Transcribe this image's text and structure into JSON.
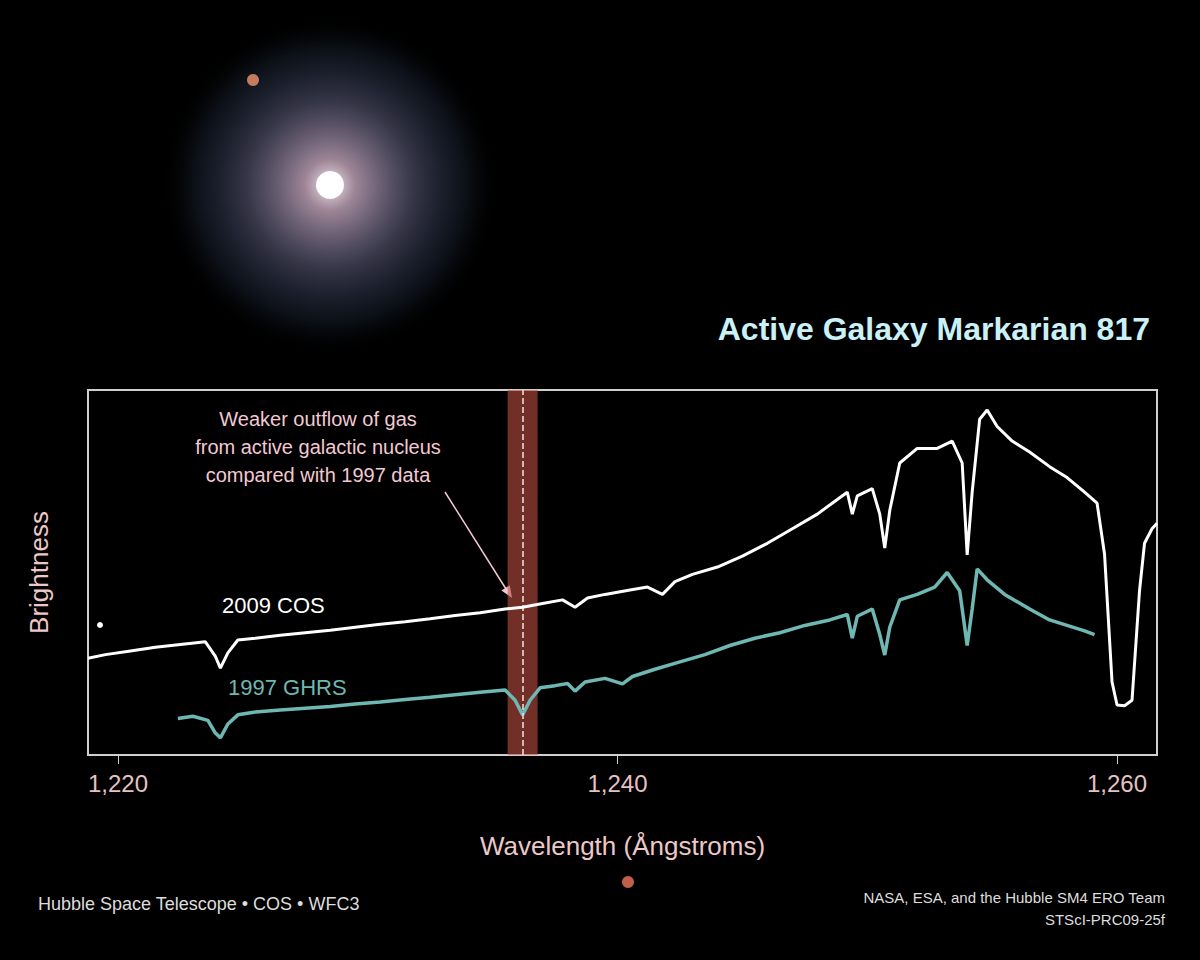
{
  "chart_data": {
    "type": "line",
    "title": "Active Galaxy Markarian 817",
    "x_label": "Wavelength (Ångstroms)",
    "y_label": "Brightness",
    "xlim": [
      1218.8,
      1261.6
    ],
    "xticks": [
      1220,
      1240,
      1260
    ],
    "ylim": [
      0,
      100
    ],
    "tick_labels": "x",
    "grid": false,
    "series": [
      {
        "name": "2009 COS",
        "color": "#ffffff",
        "x": [
          1218.8,
          1219.5,
          1220.5,
          1221.5,
          1222.5,
          1223.5,
          1223.9,
          1224.1,
          1224.4,
          1224.8,
          1225.5,
          1226.5,
          1227.5,
          1228.5,
          1229.5,
          1230.5,
          1231.5,
          1232.5,
          1233.5,
          1234.5,
          1235.5,
          1236.2,
          1237,
          1237.8,
          1238.3,
          1238.8,
          1239.5,
          1240.5,
          1241.2,
          1241.8,
          1242.3,
          1243,
          1244,
          1245,
          1246,
          1247,
          1248,
          1248.8,
          1249.2,
          1249.4,
          1249.6,
          1250.2,
          1250.5,
          1250.7,
          1250.9,
          1251.3,
          1252,
          1252.8,
          1253.4,
          1253.8,
          1254.0,
          1254.2,
          1254.5,
          1254.8,
          1255.2,
          1255.8,
          1256.5,
          1257.3,
          1258,
          1258.7,
          1259.2,
          1259.5,
          1259.8,
          1260.0,
          1260.3,
          1260.6,
          1260.9,
          1261.1,
          1261.4,
          1261.6
        ],
        "values": [
          26.5,
          27.5,
          28.5,
          29.5,
          30.3,
          31,
          27,
          23.8,
          28,
          31.5,
          32,
          32.8,
          33.5,
          34.2,
          35,
          35.8,
          36.5,
          37.3,
          38.2,
          39,
          40,
          40.5,
          41.5,
          42.5,
          40.5,
          43,
          44,
          45.2,
          46,
          44,
          47.5,
          49.5,
          51.5,
          54.5,
          58,
          62,
          66,
          70,
          72,
          66,
          71,
          73,
          66,
          56.7,
          67,
          80,
          84,
          84,
          86,
          80,
          54.8,
          72,
          92,
          94.5,
          90,
          86,
          83,
          79,
          76,
          72,
          69,
          55,
          20,
          13.7,
          13.5,
          15,
          45,
          58,
          62,
          63.5
        ]
      },
      {
        "name": "1997 GHRS",
        "color": "#6fb7b2",
        "x": [
          1222.4,
          1223.0,
          1223.6,
          1223.9,
          1224.1,
          1224.4,
          1224.8,
          1225.5,
          1226.5,
          1227.5,
          1228.5,
          1229.5,
          1230.5,
          1231.5,
          1232.5,
          1233.5,
          1234.5,
          1235.5,
          1235.9,
          1236.2,
          1236.5,
          1236.9,
          1237.5,
          1238,
          1238.3,
          1238.7,
          1239.5,
          1240.2,
          1240.6,
          1241.5,
          1242.5,
          1243.5,
          1244.5,
          1245.5,
          1246.5,
          1247.5,
          1248.5,
          1249.2,
          1249.4,
          1249.6,
          1250.2,
          1250.5,
          1250.7,
          1250.9,
          1251.3,
          1252,
          1252.7,
          1253.2,
          1253.7,
          1254.0,
          1254.2,
          1254.4,
          1254.8,
          1255.5,
          1256.5,
          1257.3,
          1258,
          1258.7,
          1259.1
        ],
        "values": [
          10,
          10.6,
          9.5,
          6,
          4.7,
          8.5,
          11,
          11.8,
          12.3,
          12.8,
          13.3,
          14,
          14.5,
          15.2,
          15.8,
          16.5,
          17.2,
          17.8,
          15,
          11,
          15,
          18.4,
          19,
          19.6,
          17.5,
          20,
          21,
          19.5,
          21.5,
          23.5,
          25.5,
          27.5,
          30,
          32,
          33.5,
          35.5,
          37,
          38.5,
          32,
          38,
          40,
          33,
          27.4,
          35,
          42.5,
          44,
          46,
          50,
          45,
          30,
          40,
          51,
          48,
          44,
          40,
          37,
          35.5,
          34,
          33
        ]
      }
    ],
    "highlight": {
      "x": 1236.2,
      "range": [
        1235.6,
        1236.8
      ],
      "text": "Weaker outflow of gas\nfrom active galactic nucleus\ncompared with 1997 data"
    },
    "credits": [
      "Hubble Space Telescope • COS • WFC3",
      "NASA, ESA, and the Hubble SM4 ERO Team",
      "STScI-PRC09-25f"
    ]
  }
}
